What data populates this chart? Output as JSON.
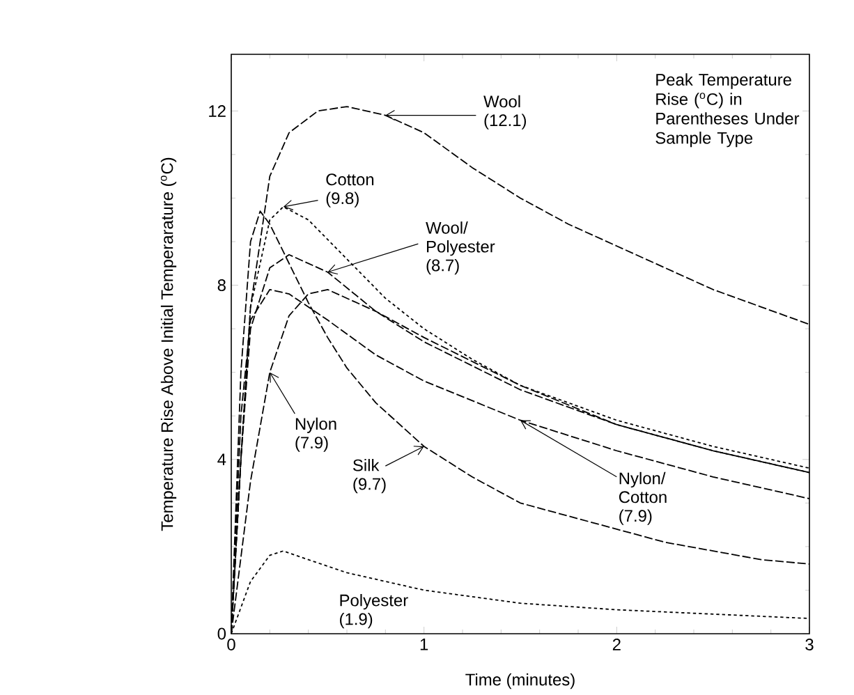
{
  "chart_data": {
    "type": "line",
    "xlabel": "Time (minutes)",
    "ylabel": "Temperature Rise Above Initial Temperarature ($^{o}$C)",
    "annotations": [
      "Peak Temperature Rise ($^{o}$C) in Parentheses Under Sample Type"
    ],
    "xlim": [
      0,
      3
    ],
    "ylim": [
      0,
      13.3
    ],
    "xticks": [
      0,
      1,
      2,
      3
    ],
    "yticks": [
      0,
      4,
      8,
      12
    ],
    "grid": false,
    "marker": "none",
    "series": [
      {
        "name": "Wool (12.1)",
        "color": "#000000",
        "line_style": "dashed",
        "x": [
          0,
          0.05,
          0.1,
          0.2,
          0.3,
          0.45,
          0.6,
          0.8,
          1,
          1.25,
          1.5,
          1.75,
          2,
          2.25,
          2.5,
          2.75,
          3
        ],
        "values": [
          0,
          4,
          7.5,
          10.5,
          11.5,
          12,
          12.1,
          11.9,
          11.5,
          10.7,
          10,
          9.4,
          8.9,
          8.4,
          7.9,
          7.5,
          7.1
        ]
      },
      {
        "name": "Cotton (9.8)",
        "color": "#000000",
        "line_style": "dotted",
        "x": [
          0,
          0.05,
          0.1,
          0.2,
          0.27,
          0.4,
          0.6,
          0.8,
          1,
          1.25,
          1.5,
          2,
          2.5,
          3
        ],
        "values": [
          0,
          4,
          7.5,
          9.5,
          9.8,
          9.5,
          8.6,
          7.7,
          7.0,
          6.3,
          5.7,
          4.9,
          4.3,
          3.8
        ]
      },
      {
        "name": "Wool/ Polyester (8.7)",
        "color": "#000000",
        "line_style": "dashed",
        "x": [
          0,
          0.05,
          0.1,
          0.2,
          0.3,
          0.5,
          0.75,
          1,
          1.5,
          2,
          2.5,
          3
        ],
        "values": [
          0,
          4,
          7,
          8.4,
          8.7,
          8.3,
          7.4,
          6.7,
          5.6,
          4.8,
          4.2,
          3.7
        ]
      },
      {
        "name": "Nylon/ Cotton (7.9)",
        "color": "#000000",
        "line_style": "dashed",
        "x": [
          0,
          0.05,
          0.1,
          0.2,
          0.3,
          0.5,
          0.75,
          1,
          1.5,
          2,
          2.5,
          3
        ],
        "values": [
          0,
          5,
          7.2,
          7.9,
          7.8,
          7.2,
          6.4,
          5.8,
          4.9,
          4.2,
          3.6,
          3.1
        ]
      },
      {
        "name": "Nylon (7.9)",
        "color": "#000000",
        "line_style": "dashed",
        "x": [
          0,
          0.1,
          0.2,
          0.3,
          0.4,
          0.5,
          0.75,
          1,
          1.5,
          2,
          2.5,
          3
        ],
        "values": [
          0,
          3.5,
          6.0,
          7.3,
          7.8,
          7.9,
          7.4,
          6.8,
          5.7,
          4.8,
          4.2,
          3.7
        ]
      },
      {
        "name": "Silk (9.7)",
        "color": "#000000",
        "line_style": "dashed",
        "x": [
          0,
          0.05,
          0.1,
          0.15,
          0.2,
          0.3,
          0.4,
          0.5,
          0.6,
          0.75,
          1,
          1.25,
          1.5,
          1.75,
          2,
          2.25,
          2.5,
          2.75,
          3
        ],
        "values": [
          0,
          6,
          9,
          9.7,
          9.4,
          8.5,
          7.6,
          6.8,
          6.1,
          5.3,
          4.3,
          3.6,
          3.0,
          2.7,
          2.4,
          2.1,
          1.9,
          1.7,
          1.6
        ]
      },
      {
        "name": "Polyester (1.9)",
        "color": "#000000",
        "line_style": "dotted",
        "x": [
          0,
          0.1,
          0.2,
          0.27,
          0.4,
          0.6,
          1,
          1.5,
          2,
          2.5,
          3
        ],
        "values": [
          0,
          1.2,
          1.8,
          1.9,
          1.7,
          1.4,
          1.0,
          0.7,
          0.55,
          0.45,
          0.35
        ]
      }
    ]
  }
}
